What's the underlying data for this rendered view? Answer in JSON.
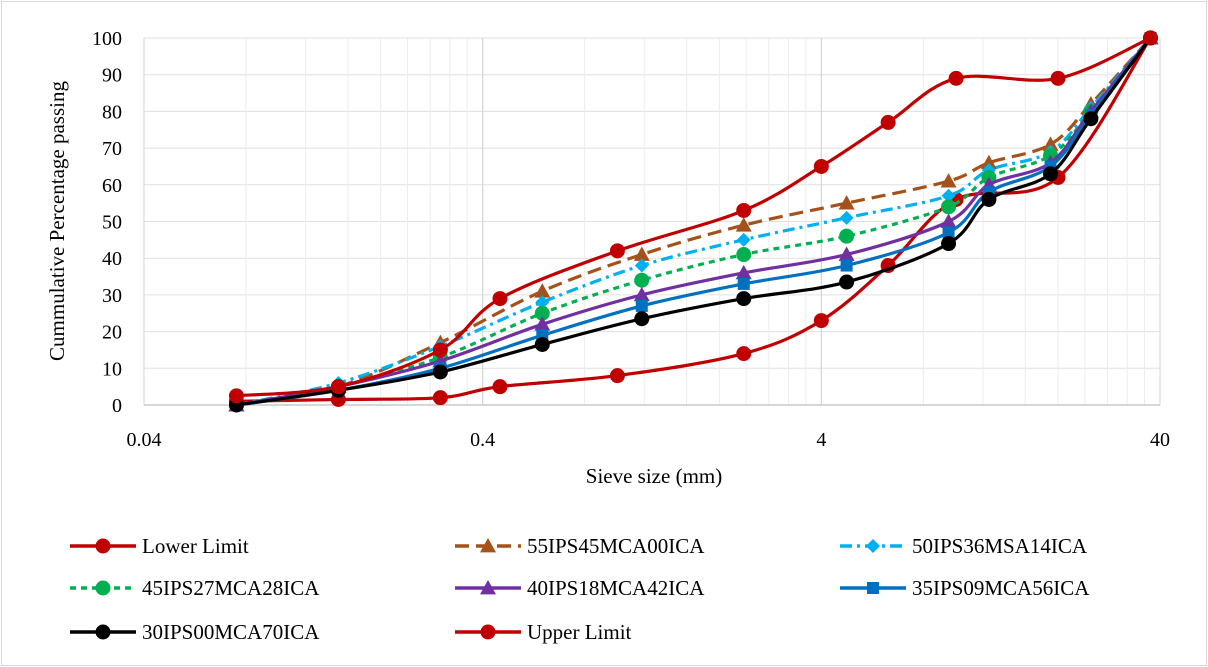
{
  "chart_data": {
    "type": "line",
    "x_scale": "log",
    "title": "",
    "xlabel": "Sieve size (mm)",
    "ylabel": "Cummulative Percentage passing",
    "xlim": [
      0.04,
      40
    ],
    "ylim": [
      0,
      100
    ],
    "x_ticks": [
      "0.04",
      "0.4",
      "4",
      "40"
    ],
    "y_ticks": [
      "0",
      "10",
      "20",
      "30",
      "40",
      "50",
      "60",
      "70",
      "80",
      "90",
      "100"
    ],
    "grid": "major and minor vertical, major horizontal",
    "legend_position": "bottom",
    "series": [
      {
        "name": "Lower Limit",
        "color": "#c00000",
        "marker": "circle",
        "dash": "solid",
        "x": [
          0.075,
          0.15,
          0.3,
          0.45,
          1.0,
          2.36,
          4.0,
          6.3,
          10,
          20,
          37.5
        ],
        "y": [
          1,
          1.5,
          2,
          5,
          8,
          14,
          23,
          38,
          56,
          62,
          100
        ]
      },
      {
        "name": "55IPS45MCA00ICA",
        "color": "#a5521a",
        "marker": "triangle",
        "dash": "long-dash",
        "x": [
          0.075,
          0.15,
          0.3,
          0.6,
          1.18,
          2.36,
          4.75,
          9.5,
          12.5,
          19,
          25,
          37.5
        ],
        "y": [
          0,
          5,
          17,
          31,
          41,
          49,
          55,
          61,
          66,
          71,
          82,
          100
        ]
      },
      {
        "name": "50IPS36MSA14ICA",
        "color": "#00b0f0",
        "marker": "diamond",
        "dash": "dash-dot",
        "x": [
          0.075,
          0.15,
          0.3,
          0.6,
          1.18,
          2.36,
          4.75,
          9.5,
          12.5,
          19,
          25,
          37.5
        ],
        "y": [
          0,
          6,
          16,
          28,
          38,
          45,
          51,
          57,
          64,
          69,
          81,
          100
        ]
      },
      {
        "name": "45IPS27MCA28ICA",
        "color": "#00b050",
        "marker": "circle",
        "dash": "dotted",
        "x": [
          0.075,
          0.15,
          0.3,
          0.6,
          1.18,
          2.36,
          4.75,
          9.5,
          12.5,
          19,
          25,
          37.5
        ],
        "y": [
          0,
          5,
          13,
          25,
          34,
          41,
          46,
          54,
          62,
          68,
          80,
          100
        ]
      },
      {
        "name": "40IPS18MCA42ICA",
        "color": "#7030a0",
        "marker": "triangle",
        "dash": "solid",
        "x": [
          0.075,
          0.15,
          0.3,
          0.6,
          1.18,
          2.36,
          4.75,
          9.5,
          12.5,
          19,
          25,
          37.5
        ],
        "y": [
          0,
          5,
          12,
          22,
          30,
          36,
          41,
          50,
          60,
          66,
          80,
          100
        ]
      },
      {
        "name": "35IPS09MCA56ICA",
        "color": "#0070c0",
        "marker": "square",
        "dash": "solid",
        "x": [
          0.075,
          0.15,
          0.3,
          0.6,
          1.18,
          2.36,
          4.75,
          9.5,
          12.5,
          19,
          25,
          37.5
        ],
        "y": [
          0,
          4,
          10,
          19,
          27,
          33,
          38,
          47,
          58,
          65,
          79,
          100
        ]
      },
      {
        "name": "30IPS00MCA70ICA",
        "color": "#000000",
        "marker": "circle",
        "dash": "solid",
        "x": [
          0.075,
          0.15,
          0.3,
          0.6,
          1.18,
          2.36,
          4.75,
          9.5,
          12.5,
          19,
          25,
          37.5
        ],
        "y": [
          0,
          4,
          9,
          16.5,
          23.5,
          29,
          33.5,
          44,
          56,
          63,
          78,
          100
        ]
      },
      {
        "name": "Upper Limit",
        "color": "#c00000",
        "marker": "circle",
        "dash": "solid",
        "x": [
          0.075,
          0.15,
          0.3,
          0.45,
          1.0,
          2.36,
          4.0,
          6.3,
          10,
          20,
          37.5
        ],
        "y": [
          2.5,
          5,
          15,
          29,
          42,
          53,
          65,
          77,
          89,
          89,
          100
        ]
      }
    ]
  }
}
